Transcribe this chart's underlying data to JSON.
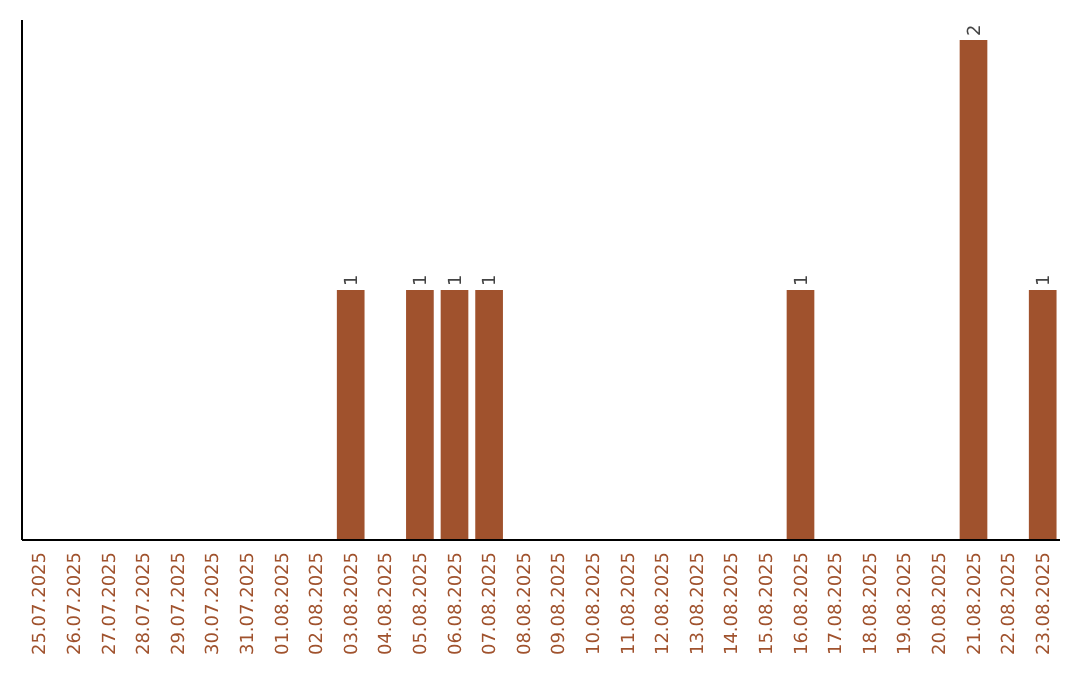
{
  "chart_data": {
    "type": "bar",
    "categories": [
      "25.07.2025",
      "26.07.2025",
      "27.07.2025",
      "28.07.2025",
      "29.07.2025",
      "30.07.2025",
      "31.07.2025",
      "01.08.2025",
      "02.08.2025",
      "03.08.2025",
      "04.08.2025",
      "05.08.2025",
      "06.08.2025",
      "07.08.2025",
      "08.08.2025",
      "09.08.2025",
      "10.08.2025",
      "11.08.2025",
      "12.08.2025",
      "13.08.2025",
      "14.08.2025",
      "15.08.2025",
      "16.08.2025",
      "17.08.2025",
      "18.08.2025",
      "19.08.2025",
      "20.08.2025",
      "21.08.2025",
      "22.08.2025",
      "23.08.2025"
    ],
    "values": [
      0,
      0,
      0,
      0,
      0,
      0,
      0,
      0,
      0,
      1,
      0,
      1,
      1,
      1,
      0,
      0,
      0,
      0,
      0,
      0,
      0,
      0,
      1,
      0,
      0,
      0,
      0,
      2,
      0,
      1
    ],
    "value_labels": [
      null,
      null,
      null,
      null,
      null,
      null,
      null,
      null,
      null,
      "1",
      null,
      "1",
      "1",
      "1",
      null,
      null,
      null,
      null,
      null,
      null,
      null,
      null,
      "1",
      null,
      null,
      null,
      null,
      "2",
      null,
      "1"
    ],
    "color": "#a0522d"
  }
}
